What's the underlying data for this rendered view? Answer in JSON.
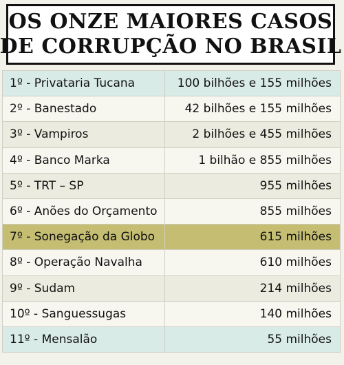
{
  "title": {
    "line1": "OS ONZE MAIORES CASOS",
    "line2": "DE CORRUPÇÃO NO BRASIL"
  },
  "rows": [
    {
      "name": "1º - Privataria Tucana",
      "value": "100 bilhões e 155 milhões",
      "style": "teal"
    },
    {
      "name": "2º - Banestado",
      "value": "42 bilhões  e 155 milhões",
      "style": "light"
    },
    {
      "name": "3º - Vampiros",
      "value": "2 bilhões  e 455 milhões",
      "style": "cream"
    },
    {
      "name": "4º - Banco Marka",
      "value": "1 bilhão   e 855 milhões",
      "style": "light"
    },
    {
      "name": "5º - TRT – SP",
      "value": "955 milhões",
      "style": "cream"
    },
    {
      "name": "6º - Anões do Orçamento",
      "value": "855 milhões",
      "style": "light"
    },
    {
      "name": "7º - Sonegação da Globo",
      "value": "615 milhões",
      "style": "hl"
    },
    {
      "name": "8º - Operação Navalha",
      "value": "610 milhões",
      "style": "light"
    },
    {
      "name": "9º - Sudam",
      "value": "214 milhões",
      "style": "cream"
    },
    {
      "name": "10º - Sanguessugas",
      "value": "140 milhões",
      "style": "light"
    },
    {
      "name": "11º - Mensalão",
      "value": "55 milhões",
      "style": "teal"
    }
  ]
}
